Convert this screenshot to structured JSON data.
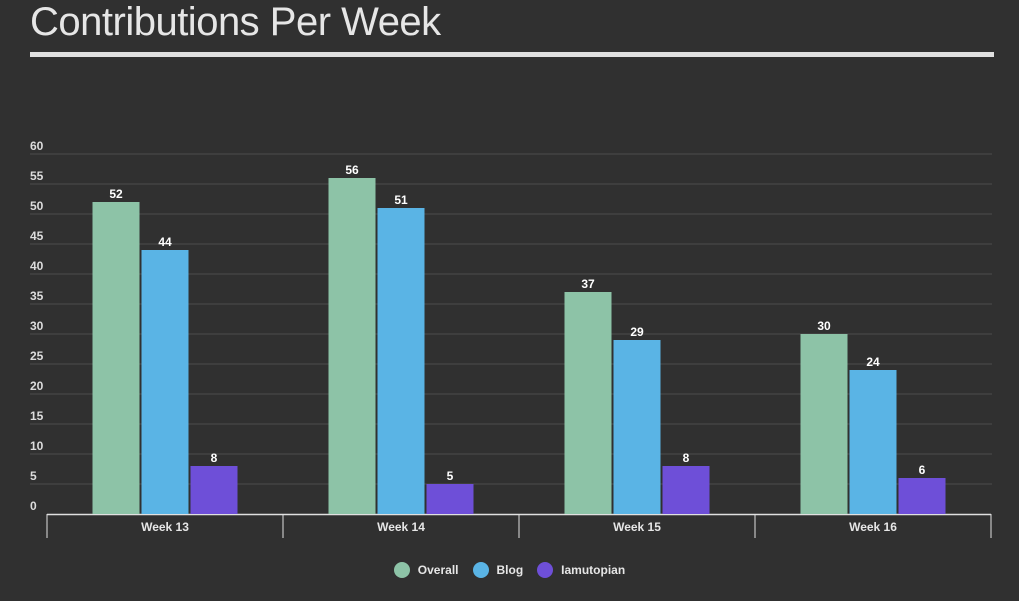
{
  "header": {
    "title": "Contributions Per Week"
  },
  "chart_data": {
    "type": "bar",
    "title": "Contributions Per Week",
    "categories": [
      "Week 13",
      "Week 14",
      "Week 15",
      "Week 16"
    ],
    "series": [
      {
        "name": "Overall",
        "color": "#8dc3a7",
        "values": [
          52,
          56,
          37,
          30
        ]
      },
      {
        "name": "Blog",
        "color": "#5ab4e5",
        "values": [
          44,
          51,
          29,
          24
        ]
      },
      {
        "name": "Iamutopian",
        "color": "#6e4fd8",
        "values": [
          8,
          5,
          8,
          6
        ]
      }
    ],
    "ylim": [
      0,
      60
    ],
    "yticks": [
      0,
      5,
      10,
      15,
      20,
      25,
      30,
      35,
      40,
      45,
      50,
      55,
      60
    ],
    "grid": true,
    "legend_position": "bottom",
    "data_labels": true
  }
}
